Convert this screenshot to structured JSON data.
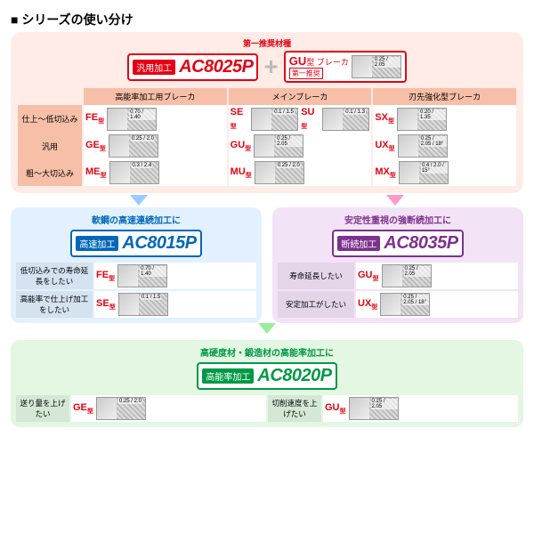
{
  "page_title": "シリーズの使い分け",
  "top": {
    "first_recommend": "第一推奨材種",
    "general_badge": {
      "label": "汎用加工",
      "code": "AC8025P",
      "border": "#e60012",
      "label_bg": "#e60012",
      "code_color": "#e60012"
    },
    "gu_breaker": {
      "code": "GU",
      "suffix": "型 ブレーカ",
      "note": "第一推奨",
      "dims": "0.25 / 2.05"
    }
  },
  "main_table": {
    "headers": [
      "高能率加工用ブレーカ",
      "メインブレーカ",
      "刃先強化型ブレーカ"
    ],
    "rows": [
      {
        "label": "仕上～低切込み",
        "cells": [
          {
            "tag": "FE型",
            "dims": "0.70 / 1.40"
          },
          {
            "tag": "SE型",
            "dims": "0.1 / 1.5"
          },
          {
            "tag": "SU型",
            "dims": "0.1 / 1.3"
          },
          {
            "tag": "SX型",
            "dims": "0.20 / 1.35"
          }
        ]
      },
      {
        "label": "汎用",
        "cells": [
          {
            "tag": "GE型",
            "dims": "0.25 / 2.0"
          },
          null,
          {
            "tag": "GU型",
            "dims": "0.25 / 2.05"
          },
          {
            "tag": "UX型",
            "dims": "0.25 / 2.05 / 18°"
          }
        ]
      },
      {
        "label": "粗～大切込み",
        "cells": [
          {
            "tag": "ME型",
            "dims": "0.3 / 2.4"
          },
          null,
          {
            "tag": "MU型",
            "dims": "0.25 / 2.0"
          },
          {
            "tag": "MX型",
            "dims": "0.4 / 2.0 / 15°"
          }
        ]
      }
    ]
  },
  "blue_panel": {
    "title": "軟鋼の高速連続加工に",
    "title_color": "#0068b7",
    "badge": {
      "label": "高速加工",
      "code": "AC8015P",
      "border": "#0068b7",
      "label_bg": "#0068b7",
      "code_color": "#0068b7"
    },
    "rows": [
      {
        "label": "低切込みでの寿命延長をしたい",
        "tag": "FE型",
        "dims": "0.70 / 1.40"
      },
      {
        "label": "高能率で仕上げ加工をしたい",
        "tag": "SE型",
        "dims": "0.1 / 1.5"
      }
    ]
  },
  "purple_panel": {
    "title": "安定性重視の強断続加工に",
    "title_color": "#7e318e",
    "badge": {
      "label": "断続加工",
      "code": "AC8035P",
      "border": "#7e318e",
      "label_bg": "#7e318e",
      "code_color": "#7e318e"
    },
    "rows": [
      {
        "label": "寿命延長したい",
        "tag": "GU型",
        "dims": "0.25 / 2.05"
      },
      {
        "label": "安定加工がしたい",
        "tag": "UX型",
        "dims": "0.25 / 2.05 / 18°"
      }
    ]
  },
  "green_panel": {
    "title": "高硬度材・鍛造材の高能率加工に",
    "title_color": "#009944",
    "badge": {
      "label": "高能率加工",
      "code": "AC8020P",
      "border": "#009944",
      "label_bg": "#009944",
      "code_color": "#009944"
    },
    "rows": [
      {
        "label": "送り量を上げたい",
        "tag": "GE型",
        "dims": "0.25 / 2.0"
      },
      {
        "label": "切削速度を上げたい",
        "tag": "GU型",
        "dims": "0.25 / 2.05"
      }
    ]
  }
}
